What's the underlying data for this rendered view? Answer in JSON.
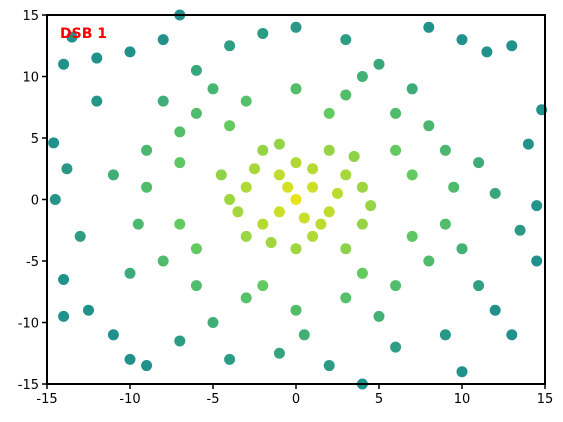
{
  "chart_data": {
    "type": "scatter",
    "annotation": "DSB 1",
    "x": [
      -13.5,
      -10,
      -7,
      -4,
      0,
      3,
      8,
      11.5,
      13,
      14.8,
      14,
      12,
      13.5,
      14.5,
      12,
      13,
      10,
      6,
      2,
      -1,
      -4,
      -7,
      -10,
      -12.5,
      -14,
      -13,
      -14.5,
      -13.8,
      -14.6,
      -12,
      -14,
      -12,
      -8,
      5,
      10,
      14.5,
      11,
      -11,
      -14,
      -9,
      0.5,
      4,
      9,
      -2,
      -6,
      -8,
      -6,
      -3,
      0,
      3,
      6,
      8,
      9,
      9.5,
      9,
      8,
      6,
      3,
      0,
      -3,
      -6,
      -8,
      -9.5,
      -9,
      -9,
      -7,
      -5,
      4,
      7,
      10,
      -10,
      -5,
      5,
      -11,
      11,
      -7,
      7,
      -4,
      4,
      6,
      -6,
      2,
      -2,
      7,
      -7,
      0,
      1,
      -1,
      2,
      -2,
      3,
      -3,
      1,
      -1,
      0,
      2,
      -4,
      4,
      -2,
      3,
      0,
      -3,
      4,
      1,
      -1.5,
      2.5,
      -0.5,
      0.5,
      -2.5,
      3.5,
      -3.5,
      1.5,
      -1,
      4.5,
      -4.5
    ],
    "values": [
      13.2,
      12,
      15,
      12.5,
      14,
      13,
      14,
      12,
      12.5,
      7.3,
      4.5,
      0.5,
      -2.5,
      -5,
      -9,
      -11,
      -14,
      -12,
      -13.5,
      -12.5,
      -13,
      -11.5,
      -13,
      -9,
      -6.5,
      -3,
      0,
      2.5,
      4.6,
      8,
      11,
      11.5,
      13,
      11,
      13,
      -0.5,
      -7,
      -11,
      -9.5,
      -13.5,
      -11,
      -15,
      -11,
      13.5,
      10.5,
      8,
      7,
      8,
      9,
      8.5,
      7,
      6,
      4,
      1,
      -2,
      -5,
      -7,
      -8,
      -9,
      -8,
      -7,
      -5,
      -2,
      1,
      4,
      5.5,
      9,
      10,
      9,
      -4,
      -6,
      -10,
      -9.5,
      2,
      3,
      -2,
      2,
      6,
      -6,
      4,
      -4,
      7,
      -7,
      -3,
      3,
      0,
      1,
      2,
      -1,
      -2,
      2,
      1,
      -3,
      -1,
      3,
      4,
      0,
      -2,
      4,
      -4,
      -4,
      -3,
      1,
      2.5,
      -3.5,
      0.5,
      1,
      -1.5,
      2.5,
      3.5,
      -1,
      -2,
      4.5,
      -0.5,
      2
    ],
    "colormap": [
      "#e8e419",
      "#5ec962",
      "#21918c"
    ],
    "xlim": [
      -15,
      15
    ],
    "ylim": [
      -15,
      15
    ],
    "xticks": [
      -15,
      -10,
      -5,
      0,
      5,
      10,
      15
    ],
    "yticks": [
      -15,
      -10,
      -5,
      0,
      5,
      10,
      15
    ]
  }
}
